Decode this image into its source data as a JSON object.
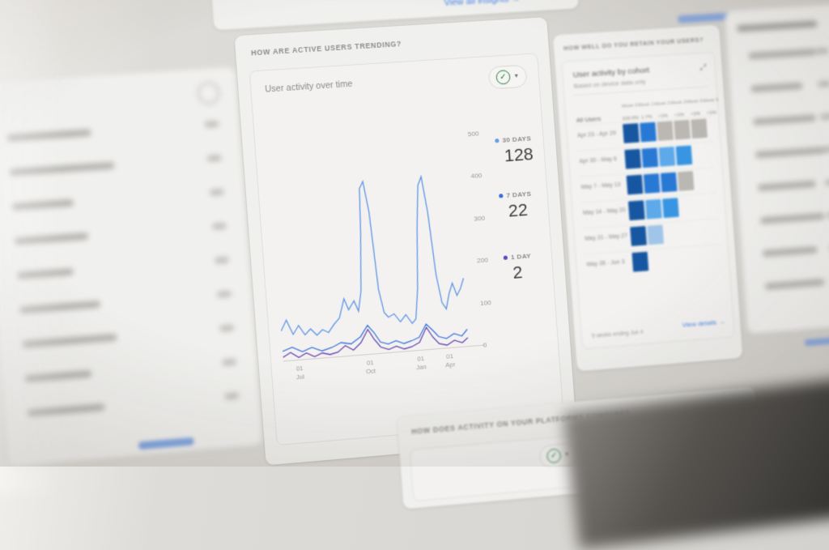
{
  "top": {
    "insights_link": "View all insights →"
  },
  "active_users": {
    "question": "HOW ARE ACTIVE USERS TRENDING?",
    "title": "User activity over time",
    "legend": [
      {
        "label": "30 DAYS",
        "value": "128",
        "color": "#5f9ef2"
      },
      {
        "label": "7 DAYS",
        "value": "22",
        "color": "#2a6ee8"
      },
      {
        "label": "1 DAY",
        "value": "2",
        "color": "#5548c8"
      }
    ]
  },
  "chart_data": {
    "type": "line",
    "title": "User activity over time",
    "xlabel": "",
    "ylabel": "",
    "ylim": [
      0,
      500
    ],
    "grid": false,
    "legend_position": "right",
    "ytick_labels": [
      "500",
      "400",
      "300",
      "200",
      "100",
      "0"
    ],
    "xticks": [
      {
        "day": "01",
        "month": "Jul",
        "pos": 8
      },
      {
        "day": "01",
        "month": "Oct",
        "pos": 44
      },
      {
        "day": "01",
        "month": "Jan",
        "pos": 70
      },
      {
        "day": "01",
        "month": "Apr",
        "pos": 85
      }
    ],
    "series": [
      {
        "name": "30 DAYS",
        "current": 128,
        "color": "#4d8ff0",
        "points": [
          [
            0,
            70
          ],
          [
            3,
            95
          ],
          [
            6,
            60
          ],
          [
            9,
            80
          ],
          [
            12,
            57
          ],
          [
            15,
            70
          ],
          [
            18,
            54
          ],
          [
            21,
            66
          ],
          [
            24,
            58
          ],
          [
            27,
            76
          ],
          [
            30,
            90
          ],
          [
            33,
            135
          ],
          [
            35,
            108
          ],
          [
            38,
            128
          ],
          [
            40,
            103
          ],
          [
            42,
            150
          ],
          [
            44,
            290
          ],
          [
            45,
            392
          ],
          [
            47,
            408
          ],
          [
            49,
            335
          ],
          [
            51,
            150
          ],
          [
            53,
            95
          ],
          [
            55,
            83
          ],
          [
            58,
            90
          ],
          [
            61,
            70
          ],
          [
            64,
            86
          ],
          [
            67,
            64
          ],
          [
            69,
            74
          ],
          [
            71,
            145
          ],
          [
            73,
            290
          ],
          [
            75,
            390
          ],
          [
            77,
            410
          ],
          [
            79,
            325
          ],
          [
            81,
            175
          ],
          [
            83,
            108
          ],
          [
            85,
            92
          ],
          [
            87,
            128
          ],
          [
            89,
            152
          ],
          [
            91,
            122
          ],
          [
            93,
            138
          ],
          [
            95,
            162
          ]
        ]
      },
      {
        "name": "7 DAYS",
        "current": 22,
        "color": "#2a6ee8",
        "points": [
          [
            0,
            22
          ],
          [
            5,
            30
          ],
          [
            10,
            18
          ],
          [
            15,
            26
          ],
          [
            20,
            16
          ],
          [
            25,
            22
          ],
          [
            30,
            32
          ],
          [
            35,
            27
          ],
          [
            40,
            42
          ],
          [
            44,
            68
          ],
          [
            47,
            50
          ],
          [
            50,
            26
          ],
          [
            54,
            20
          ],
          [
            58,
            26
          ],
          [
            62,
            18
          ],
          [
            66,
            23
          ],
          [
            70,
            30
          ],
          [
            74,
            60
          ],
          [
            77,
            45
          ],
          [
            80,
            28
          ],
          [
            84,
            22
          ],
          [
            88,
            32
          ],
          [
            92,
            25
          ],
          [
            95,
            40
          ]
        ]
      },
      {
        "name": "1 DAY",
        "current": 2,
        "color": "#5e35b1",
        "points": [
          [
            0,
            8
          ],
          [
            4,
            18
          ],
          [
            8,
            5
          ],
          [
            12,
            14
          ],
          [
            16,
            4
          ],
          [
            20,
            11
          ],
          [
            24,
            6
          ],
          [
            28,
            10
          ],
          [
            32,
            24
          ],
          [
            36,
            12
          ],
          [
            40,
            28
          ],
          [
            44,
            58
          ],
          [
            47,
            33
          ],
          [
            50,
            14
          ],
          [
            54,
            7
          ],
          [
            58,
            13
          ],
          [
            62,
            5
          ],
          [
            66,
            9
          ],
          [
            70,
            18
          ],
          [
            74,
            52
          ],
          [
            77,
            28
          ],
          [
            80,
            11
          ],
          [
            84,
            6
          ],
          [
            88,
            16
          ],
          [
            92,
            9
          ],
          [
            95,
            20
          ]
        ]
      }
    ]
  },
  "retention": {
    "question": "HOW WELL DO YOU RETAIN YOUR USERS?",
    "title": "User activity by cohort",
    "subtitle": "Based on device data only",
    "week_columns": [
      "Week 0",
      "Week 1",
      "Week 2",
      "Week 3",
      "Week 4",
      "Week 5"
    ],
    "all_users": {
      "label": "All Users",
      "values": [
        "100.0%",
        "1.7%",
        "<1%",
        "<1%",
        "<1%",
        "<1%"
      ]
    },
    "cohorts": [
      {
        "label": "Apr 23 - Apr 29",
        "cells": [
          "dark",
          "blue",
          "gray",
          "gray",
          "gray",
          "none"
        ]
      },
      {
        "label": "Apr 30 - May 6",
        "cells": [
          "dark",
          "blue",
          "light",
          "mid",
          "none",
          "none"
        ]
      },
      {
        "label": "May 7 - May 13",
        "cells": [
          "dark",
          "blue",
          "blue",
          "gray",
          "none",
          "none"
        ]
      },
      {
        "label": "May 14 - May 20",
        "cells": [
          "dark",
          "light",
          "mid",
          "none",
          "none",
          "none"
        ]
      },
      {
        "label": "May 21 - May 27",
        "cells": [
          "dark",
          "pale",
          "none",
          "none",
          "none",
          "none"
        ]
      },
      {
        "label": "May 28 - Jun 3",
        "cells": [
          "dark",
          "none",
          "none",
          "none",
          "none",
          "none"
        ]
      }
    ],
    "cell_colors": {
      "dark": "#0f56a9",
      "blue": "#1f7ae0",
      "light": "#56abf4",
      "mid": "#2e97ed",
      "pale": "#9fc8ef",
      "gray": "#bdbab5",
      "none": "transparent"
    },
    "footnote": "5 weeks ending Jun 4",
    "details_link": "View details →"
  },
  "platforms": {
    "question": "HOW DOES ACTIVITY ON YOUR PLATFORMS COMPARE?"
  }
}
